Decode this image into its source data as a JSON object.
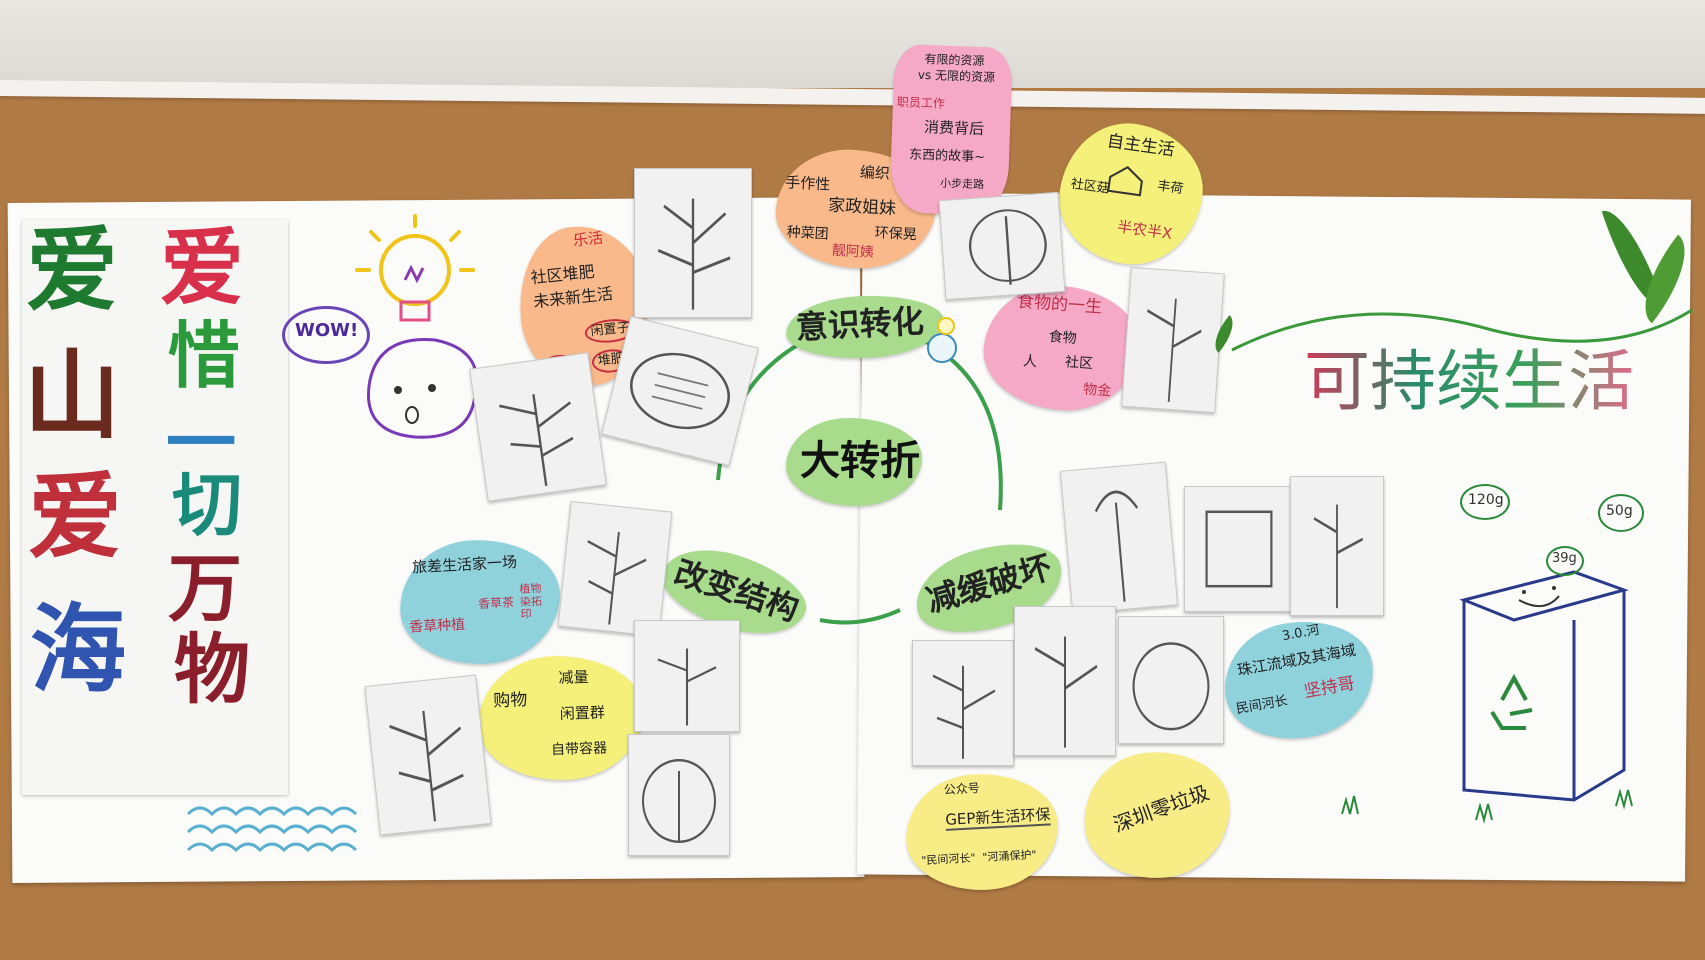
{
  "banner": {
    "col_left": [
      "爱",
      "山",
      "爱",
      "海"
    ],
    "col_right": [
      "爱",
      "惜",
      "一",
      "切",
      "万",
      "物"
    ]
  },
  "title": "可持续生活",
  "center": "大转折",
  "branches": {
    "top": "意识转化",
    "left": "改变结构",
    "right": "减缓破坏"
  },
  "doodles": {
    "wow": "WOW!",
    "weights": [
      "120g",
      "50g",
      "39g"
    ]
  },
  "notes": {
    "orange_left": {
      "tag": "乐活",
      "line1": "社区堆肥",
      "line2": "未来新生活",
      "chip1": "闲置子",
      "chip2": "冬季",
      "chip3": "堆肥"
    },
    "orange_top": {
      "a": "手作性",
      "b": "编织",
      "c": "家政姐妹",
      "d": "种菜团",
      "e": "环保晃",
      "f": "靓阿姨"
    },
    "pink_top": {
      "a": "有限的资源",
      "b": "vs 无限的资源",
      "c": "职员工作",
      "d": "消费背后",
      "e": "东西的故事~",
      "f": "小步走路"
    },
    "yellow_top": {
      "a": "自主生活",
      "b": "社区菇",
      "c": "丰荷",
      "d": "半农半X"
    },
    "pink_right": {
      "a": "食物的一生",
      "b": "食物",
      "c": "人",
      "d": "社区",
      "e": "物金"
    },
    "teal_left": {
      "a": "旅差生活家一场",
      "b": "香草种植",
      "c": "香草茶",
      "d": "植物染拓印"
    },
    "yellow_left": {
      "a": "购物",
      "b": "减量",
      "c": "闲置群",
      "d": "自带容器"
    },
    "teal_right": {
      "a": "3.0.河",
      "b": "珠江流域及其海域",
      "c": "民间河长",
      "d": "坚持哥"
    },
    "yellow_bottom1": {
      "a": "公众号",
      "b": "GEP新生活环保",
      "c": "\"民间河长\"  \"河涌保护\""
    },
    "yellow_bottom2": {
      "a": "深圳零垃圾"
    }
  },
  "colors": {
    "green_note": "#a8dc8c",
    "orange_note": "#f9b98a",
    "pink_note": "#f6a9c6",
    "yellow_note": "#f4f07a",
    "teal_note": "#8fd2dc",
    "yellow_note2": "#f7ec86"
  }
}
